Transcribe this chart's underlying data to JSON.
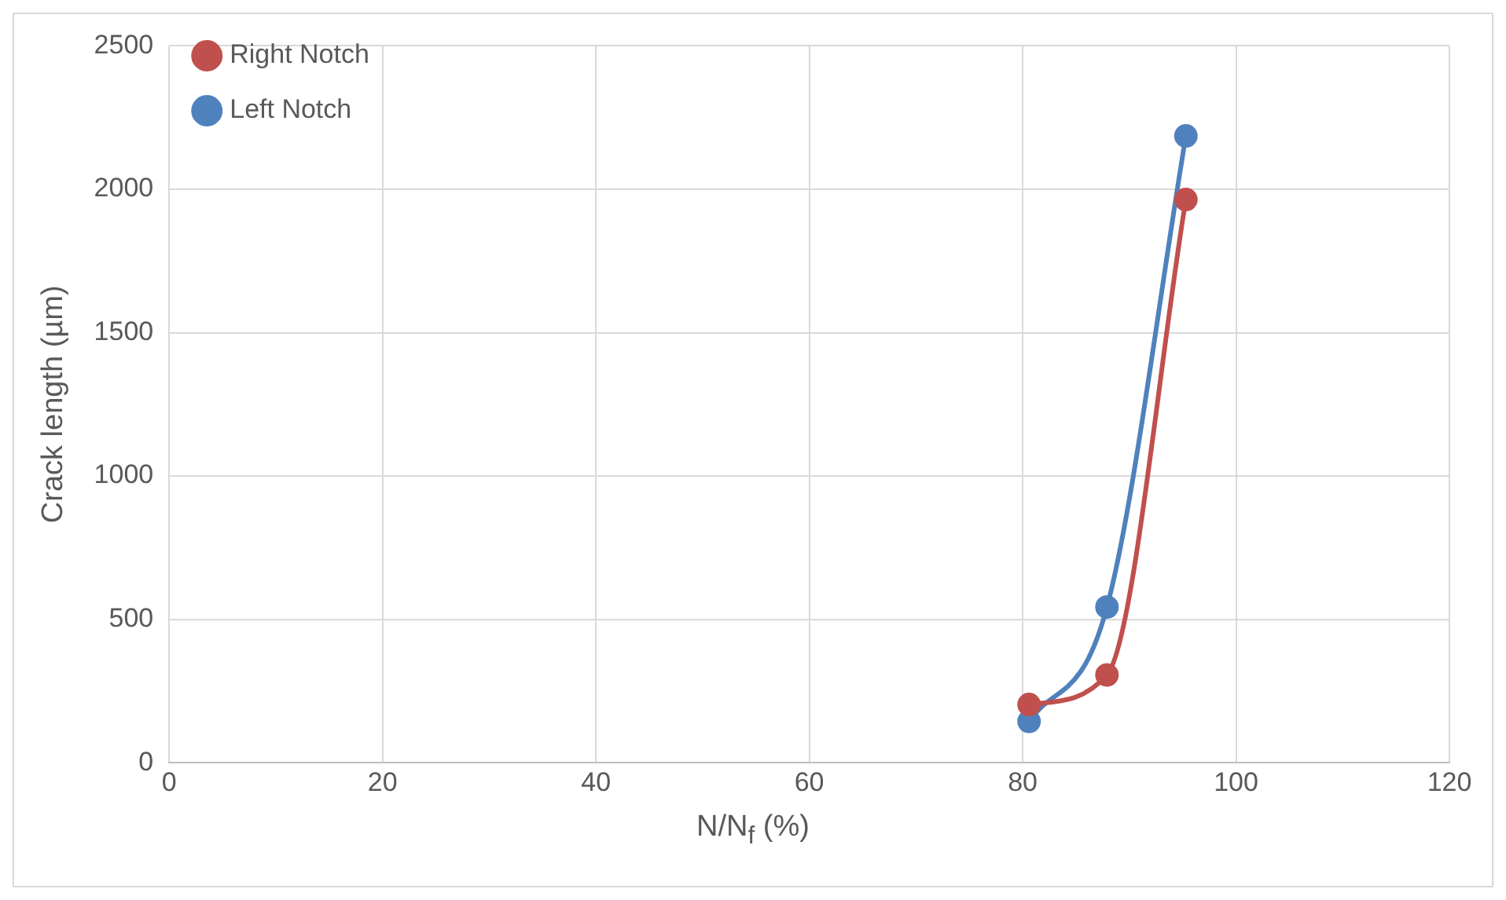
{
  "chart_data": {
    "type": "line",
    "xlabel": "N/N$_{f}$ (%)",
    "ylabel": "Crack length (µm)",
    "xlim": [
      0,
      120
    ],
    "xticks": [
      0,
      20,
      40,
      60,
      80,
      100,
      120
    ],
    "ylim": [
      0,
      2500
    ],
    "yticks": [
      0,
      500,
      1000,
      1500,
      2000,
      2500
    ],
    "grid": true,
    "legend": "top left",
    "marker": "circle",
    "line_style": "solid",
    "series": [
      {
        "name": "Right Notch",
        "color": "#c0504d",
        "x": [
          80.6,
          87.9,
          95.3
        ],
        "values": [
          203,
          306,
          1964
        ]
      },
      {
        "name": "Left Notch",
        "color": "#4f81bd",
        "x": [
          80.6,
          87.9,
          95.3
        ],
        "values": [
          144,
          543,
          2186
        ]
      }
    ]
  }
}
